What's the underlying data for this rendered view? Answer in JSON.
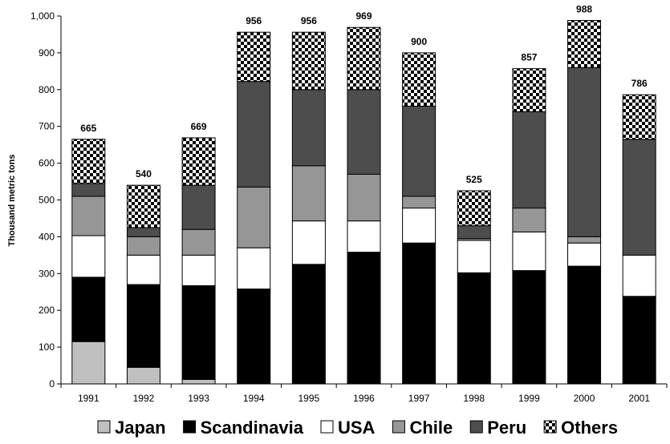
{
  "chart_data": {
    "type": "bar",
    "stacked": true,
    "ylabel": "Thousand metric tons",
    "ylim": [
      0,
      1000
    ],
    "y_ticks": [
      "0",
      "100",
      "200",
      "300",
      "400",
      "500",
      "600",
      "700",
      "800",
      "900",
      "1,000"
    ],
    "categories": [
      "1991",
      "1992",
      "1993",
      "1994",
      "1995",
      "1996",
      "1997",
      "1998",
      "1999",
      "2000",
      "2001"
    ],
    "totals": [
      "665",
      "540",
      "669",
      "956",
      "956",
      "969",
      "900",
      "525",
      "857",
      "988",
      "786"
    ],
    "series": [
      {
        "name": "Japan",
        "color": "#c0c0c0",
        "pattern": "solid",
        "values": [
          115,
          45,
          12,
          0,
          0,
          0,
          0,
          0,
          0,
          0,
          0
        ]
      },
      {
        "name": "Scandinavia",
        "color": "#000000",
        "pattern": "solid",
        "values": [
          175,
          225,
          255,
          258,
          325,
          358,
          383,
          302,
          308,
          320,
          238
        ]
      },
      {
        "name": "USA",
        "color": "#ffffff",
        "pattern": "solid",
        "values": [
          113,
          80,
          83,
          112,
          118,
          85,
          95,
          88,
          105,
          63,
          112
        ]
      },
      {
        "name": "Chile",
        "color": "#969696",
        "pattern": "solid",
        "values": [
          107,
          50,
          70,
          165,
          150,
          127,
          32,
          5,
          65,
          17,
          0
        ]
      },
      {
        "name": "Peru",
        "color": "#4d4d4d",
        "pattern": "solid",
        "values": [
          35,
          25,
          120,
          287,
          207,
          230,
          245,
          35,
          262,
          460,
          315
        ]
      },
      {
        "name": "Others",
        "color": "#000000",
        "pattern": "checker",
        "values": [
          120,
          115,
          129,
          134,
          156,
          169,
          145,
          95,
          117,
          128,
          121
        ]
      }
    ],
    "legend": {
      "position": "bottom"
    },
    "grid": false
  }
}
